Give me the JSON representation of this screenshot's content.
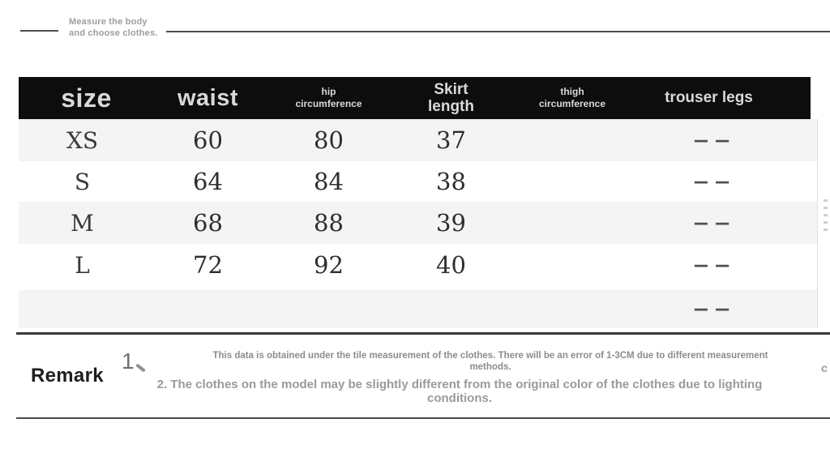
{
  "top_note": {
    "lines": [
      "Measure the body",
      "and choose clothes."
    ]
  },
  "table": {
    "header": [
      {
        "lines": [
          "size",
          ""
        ]
      },
      {
        "lines": [
          "waist",
          ""
        ]
      },
      {
        "lines": [
          "hip",
          "circumference"
        ]
      },
      {
        "lines": [
          "Skirt",
          "length"
        ]
      },
      {
        "lines": [
          "thigh",
          "circumference"
        ]
      },
      {
        "lines": [
          "trouser legs",
          ""
        ]
      }
    ],
    "rows": [
      {
        "size": "XS",
        "waist": "60",
        "hip": "80",
        "skirt": "37",
        "thigh": "",
        "trouser": "— —"
      },
      {
        "size": "S",
        "waist": "64",
        "hip": "84",
        "skirt": "38",
        "thigh": "",
        "trouser": "— —"
      },
      {
        "size": "M",
        "waist": "68",
        "hip": "88",
        "skirt": "39",
        "thigh": "",
        "trouser": "— —"
      },
      {
        "size": "L",
        "waist": "72",
        "hip": "92",
        "skirt": "40",
        "thigh": "",
        "trouser": "— —"
      },
      {
        "size": "",
        "waist": "",
        "hip": "",
        "skirt": "",
        "thigh": "",
        "trouser": "— —"
      }
    ]
  },
  "remark": {
    "label": "Remark",
    "note1": {
      "num": "1",
      "lines": [
        "This data is obtained under the tile measurement of the clothes. There will be an error of 1-3CM due to different measurement",
        "methods."
      ]
    },
    "note2": {
      "lines": [
        "2. The clothes on the model may be slightly different from the original color of the clothes due to lighting",
        "conditions."
      ]
    }
  },
  "edge_fragment": "c",
  "colors": {
    "header_bg": "#0d0d0d",
    "header_text": "#d9d9d9",
    "row_alt": "#f4f4f5",
    "rule": "#4d4d4d",
    "remark_note_text": "#8c8c8c",
    "remark_label_text": "#1e1e1e"
  }
}
